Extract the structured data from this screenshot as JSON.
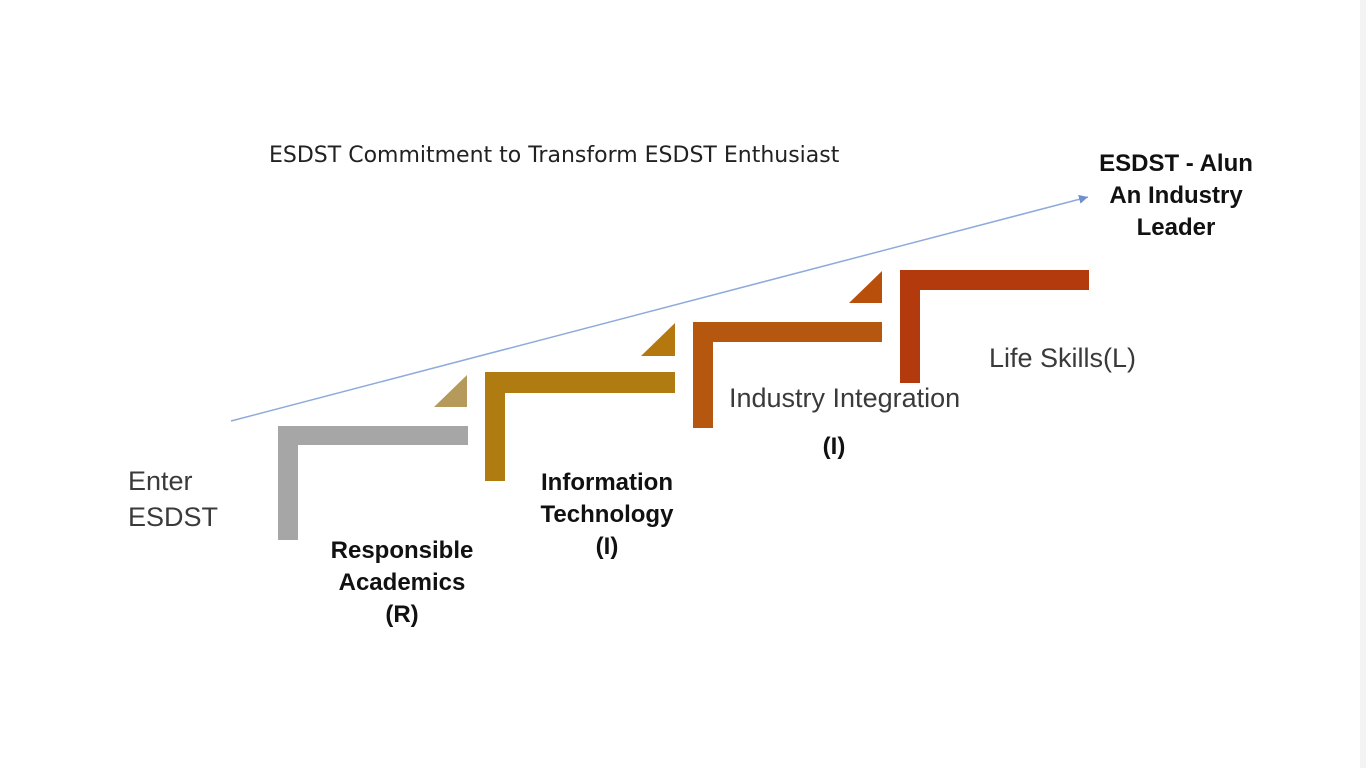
{
  "title": "ESDST Commitment to Transform ESDST Enthusiast",
  "goal": {
    "line1": "ESDST - Alun",
    "line2": "An Industry",
    "line3": "Leader"
  },
  "start": {
    "line1": "Enter",
    "line2": "ESDST"
  },
  "steps": [
    {
      "line1": "Responsible",
      "line2": "Academics",
      "line3": "(R)",
      "color": "#a6a6a6"
    },
    {
      "line1": "Information",
      "line2": "Technology",
      "line3": "(I)",
      "color": "#b07c12"
    },
    {
      "line1": "Industry Integration",
      "line2": "(I)",
      "color": "#b5570f"
    },
    {
      "line1": "Life Skills(L)",
      "color": "#b33a0d"
    }
  ],
  "arrow_color": "#8eaadb"
}
